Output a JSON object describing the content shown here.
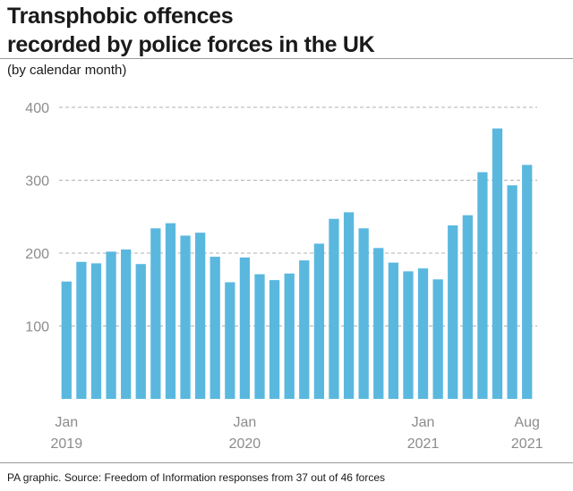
{
  "title_lines": [
    "Transphobic offences",
    "recorded by police forces in the UK"
  ],
  "subtitle": "(by calendar month)",
  "source": "PA graphic. Source: Freedom of Information responses from 37 out of 46 forces",
  "colors": {
    "bar": "#5ab8df",
    "grid": "#b0b0b0",
    "axis_text": "#8c8c8c"
  },
  "chart_data": {
    "type": "bar",
    "title": "Transphobic offences recorded by police forces in the UK",
    "subtitle": "(by calendar month)",
    "xlabel": "",
    "ylabel": "",
    "ylim": [
      0,
      400
    ],
    "yticks": [
      100,
      200,
      300,
      400
    ],
    "grid": true,
    "categories": [
      "Jan 2019",
      "Feb 2019",
      "Mar 2019",
      "Apr 2019",
      "May 2019",
      "Jun 2019",
      "Jul 2019",
      "Aug 2019",
      "Sep 2019",
      "Oct 2019",
      "Nov 2019",
      "Dec 2019",
      "Jan 2020",
      "Feb 2020",
      "Mar 2020",
      "Apr 2020",
      "May 2020",
      "Jun 2020",
      "Jul 2020",
      "Aug 2020",
      "Sep 2020",
      "Oct 2020",
      "Nov 2020",
      "Dec 2020",
      "Jan 2021",
      "Feb 2021",
      "Mar 2021",
      "Apr 2021",
      "May 2021",
      "Jun 2021",
      "Jul 2021",
      "Aug 2021"
    ],
    "values": [
      161,
      188,
      186,
      202,
      205,
      185,
      234,
      241,
      224,
      228,
      195,
      160,
      194,
      171,
      163,
      172,
      190,
      213,
      247,
      256,
      234,
      207,
      187,
      175,
      179,
      164,
      238,
      252,
      311,
      371,
      293,
      321
    ],
    "x_tick_labels": [
      {
        "index": 0,
        "lines": [
          "Jan",
          "2019"
        ]
      },
      {
        "index": 12,
        "lines": [
          "Jan",
          "2020"
        ]
      },
      {
        "index": 24,
        "lines": [
          "Jan",
          "2021"
        ]
      },
      {
        "index": 31,
        "lines": [
          "Aug",
          "2021"
        ]
      }
    ]
  }
}
